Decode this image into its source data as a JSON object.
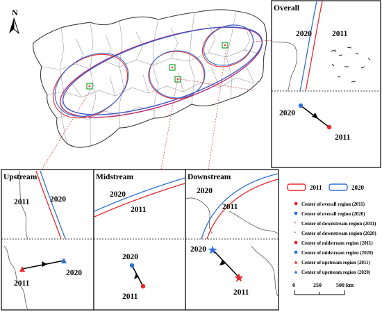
{
  "north_arrow": {
    "label": "N"
  },
  "panels": {
    "overall": {
      "title": "Overall",
      "label_2020": "2020",
      "label_2011": "2011",
      "mov_2020": "2020",
      "mov_2011": "2011"
    },
    "upstream": {
      "title": "Upstream",
      "label_2011": "2011",
      "label_2020": "2020",
      "mov_2011": "2011",
      "mov_2020": "2020"
    },
    "midstream": {
      "title": "Midstream",
      "label_2020": "2020",
      "label_2011": "2011",
      "mov_2020": "2020",
      "mov_2011": "2011"
    },
    "downstream": {
      "title": "Downstream",
      "label_2020": "2020",
      "label_2011": "2011",
      "mov_2020": "2020",
      "mov_2011": "2011"
    }
  },
  "legend": {
    "ellipse_2011": "2011",
    "ellipse_2020": "2020",
    "items": [
      "Center of overall region (2011)",
      "Center of overall region (2020)",
      "Center of downstream region (2011)",
      "Center of downstream region (2020)",
      "Center of midstream region (2011)",
      "Center of midstream region (2020)",
      "Center of upstream region (2011)",
      "Center of upstream region (2020)"
    ]
  },
  "scale_bar": {
    "tick_0": "0",
    "tick_250": "250",
    "tick_500": "500 km"
  },
  "colors": {
    "year_2011": "#e8262a",
    "year_2020": "#2f6fd9",
    "ellipse_overall_2011": "#c0246a",
    "boundary": "#8a8a8a",
    "center_marker": "#17a32a"
  }
}
